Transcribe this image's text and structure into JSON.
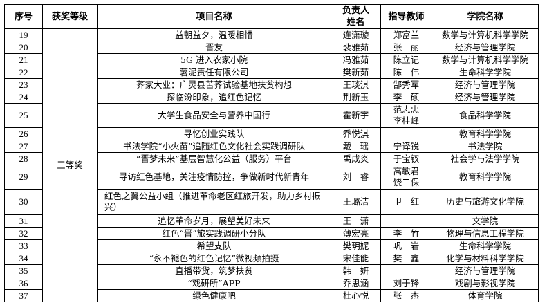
{
  "headers": {
    "index": "序号",
    "award": "获奖等级",
    "project": "项目名称",
    "leader": "负责人姓名",
    "advisor": "指导教师",
    "college": "学院名称"
  },
  "award_level": "三等奖",
  "rows": [
    {
      "no": "19",
      "project": "益朝益夕，温暖相惜",
      "leader": "连潇璇",
      "advisor": "郑富兰",
      "college": "数学与计算机科学学院"
    },
    {
      "no": "20",
      "project": "晋友",
      "leader": "裴雅茹",
      "advisor": "张　丽",
      "college": "经济与管理学院"
    },
    {
      "no": "21",
      "project": "5G 进入农家小院",
      "leader": "冯雅茹",
      "advisor": "陈立记",
      "college": "数学与计算机科学学院"
    },
    {
      "no": "22",
      "project": "薯泥责任有限公司",
      "leader": "樊新茹",
      "advisor": "陈　伟",
      "college": "生命科学学院"
    },
    {
      "no": "23",
      "project": "荞家大业：广灵县苦荞试验基地扶贫构想",
      "leader": "王琰淇",
      "advisor": "郜秀军",
      "college": "经济与管理学院"
    },
    {
      "no": "24",
      "project": "探临汾印象，追红色记忆",
      "leader": "荆新玉",
      "advisor": "李　硕",
      "college": "经济与管理学院"
    },
    {
      "no": "25",
      "project": "大学生食品安全与营养中国行",
      "leader": "霍新宇",
      "advisor": "范志忠\n李桂峰",
      "college": "食品科学学院"
    },
    {
      "no": "26",
      "project": "寻忆创业实践队",
      "leader": "乔悦淇",
      "advisor": "",
      "college": "教育科学学院"
    },
    {
      "no": "27",
      "project": "书法学院“小火苗”追随红色文化社会实践调研队",
      "leader": "戴　瑶",
      "advisor": "宁译锐",
      "college": "书法学院"
    },
    {
      "no": "28",
      "project": "“晋梦未来”基层智慧化公益（服务）平台",
      "leader": "禹成炎",
      "advisor": "于宝钗",
      "college": "社会学与法学学院"
    },
    {
      "no": "29",
      "project": "寻访红色基地，关注疫情防控，争做新时代新青年",
      "leader": "刘　睿",
      "advisor": "高敏君\n饶二保",
      "college": "教育科学学院"
    },
    {
      "no": "30",
      "project": "红色之翼公益小组（推进革命老区红旅开发，助力乡村振兴）",
      "leader": "王璐洁",
      "advisor": "卫　红",
      "college": "历史与旅游文化学院"
    },
    {
      "no": "31",
      "project": "追忆革命岁月，展望美好未来",
      "leader": "王　潇",
      "advisor": "",
      "college": "文学院"
    },
    {
      "no": "32",
      "project": "红色“晋”旅实践调研小分队",
      "leader": "薄宏亮",
      "advisor": "李　竹",
      "college": "物理与信息工程学院"
    },
    {
      "no": "33",
      "project": "希望支队",
      "leader": "樊玥妮",
      "advisor": "巩　岩",
      "college": "生命科学学院"
    },
    {
      "no": "34",
      "project": "“永不褪色的红色记忆”微视频拍摄",
      "leader": "宋佳能",
      "advisor": "樊　鑫",
      "college": "化学与材料科学学院"
    },
    {
      "no": "35",
      "project": "直播带货，筑梦扶贫",
      "leader": "韩　妍",
      "advisor": "",
      "college": "经济与管理学院"
    },
    {
      "no": "36",
      "project": "“戏研所”APP",
      "leader": "乔思涵",
      "advisor": "刘于锋",
      "college": "戏剧与影视学院"
    },
    {
      "no": "37",
      "project": "绿色健康吧",
      "leader": "杜心悦",
      "advisor": "张　杰",
      "college": "体育学院"
    }
  ]
}
